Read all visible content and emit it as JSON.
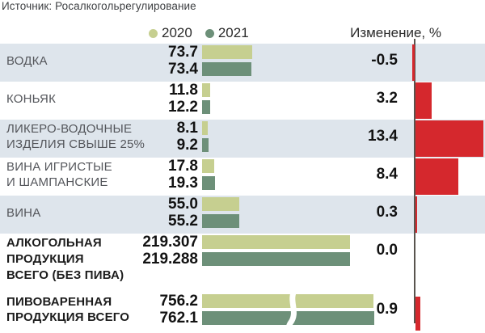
{
  "header": {
    "source": "Источник: Росалкогольрегулирование",
    "change_column": "Изменение, %"
  },
  "legend": {
    "y2020": "2020",
    "y2021": "2021"
  },
  "colors": {
    "bar_2020": "#c6cf90",
    "bar_2021": "#6d9079",
    "change_bar": "#d5282d",
    "row_shading": "#dee5ec",
    "axis": "#59544e"
  },
  "rows": [
    {
      "label_line1": "ВОДКА",
      "label_line2": "",
      "v2020": 73.7,
      "v2021": 73.4,
      "v2020_label": "73.7",
      "v2021_label": "73.4",
      "change": -0.5,
      "change_label": "-0.5"
    },
    {
      "label_line1": "КОНЬЯК",
      "label_line2": "",
      "v2020": 11.8,
      "v2021": 12.2,
      "v2020_label": "11.8",
      "v2021_label": "12.2",
      "change": 3.2,
      "change_label": "3.2"
    },
    {
      "label_line1": "ЛИКЕРО-ВОДОЧНЫЕ",
      "label_line2": "ИЗДЕЛИЯ СВЫШЕ 25%",
      "v2020": 8.1,
      "v2021": 9.2,
      "v2020_label": "8.1",
      "v2021_label": "9.2",
      "change": 13.4,
      "change_label": "13.4"
    },
    {
      "label_line1": "ВИНА ИГРИСТЫЕ",
      "label_line2": "И ШАМПАНСКИЕ",
      "v2020": 17.8,
      "v2021": 19.3,
      "v2020_label": "17.8",
      "v2021_label": "19.3",
      "change": 8.4,
      "change_label": "8.4"
    },
    {
      "label_line1": "ВИНА",
      "label_line2": "",
      "v2020": 55.0,
      "v2021": 55.2,
      "v2020_label": "55.0",
      "v2021_label": "55.2",
      "change": 0.3,
      "change_label": "0.3"
    },
    {
      "label_line1": "АЛКОГОЛЬНАЯ",
      "label_line2": "ПРОДУКЦИЯ",
      "label_line3": "ВСЕГО (БЕЗ ПИВА)",
      "v2020": 219.307,
      "v2021": 219.288,
      "v2020_label": "219.307",
      "v2021_label": "219.288",
      "change": 0.0,
      "change_label": "0.0"
    },
    {
      "label_line1": "ПИВОВАРЕННАЯ",
      "label_line2": "ПРОДУКЦИЯ ВСЕГО",
      "v2020": 756.2,
      "v2021": 762.1,
      "v2020_label": "756.2",
      "v2021_label": "762.1",
      "change": 0.9,
      "change_label": "0.9"
    }
  ],
  "chart_data": {
    "type": "bar",
    "orientation": "horizontal",
    "title": "",
    "source": "Источник: Росалкогольрегулирование",
    "change_axis_label": "Изменение, %",
    "legend_position": "top",
    "grid": false,
    "categories": [
      "ВОДКА",
      "КОНЬЯК",
      "ЛИКЕРО-ВОДОЧНЫЕ ИЗДЕЛИЯ СВЫШЕ 25%",
      "ВИНА ИГРИСТЫЕ И ШАМПАНСКИЕ",
      "ВИНА",
      "АЛКОГОЛЬНАЯ ПРОДУКЦИЯ ВСЕГО (БЕЗ ПИВА)",
      "ПИВОВАРЕННАЯ ПРОДУКЦИЯ ВСЕГО"
    ],
    "series": [
      {
        "name": "2020",
        "values": [
          73.7,
          11.8,
          8.1,
          17.8,
          55.0,
          219.307,
          756.2
        ]
      },
      {
        "name": "2021",
        "values": [
          73.4,
          12.2,
          9.2,
          19.3,
          55.2,
          219.288,
          762.1
        ]
      }
    ],
    "change_percent": [
      -0.5,
      3.2,
      13.4,
      8.4,
      0.3,
      0.0,
      0.9
    ],
    "truncated_bars": [
      "ПИВОВАРЕННАЯ ПРОДУКЦИЯ ВСЕГО"
    ]
  }
}
